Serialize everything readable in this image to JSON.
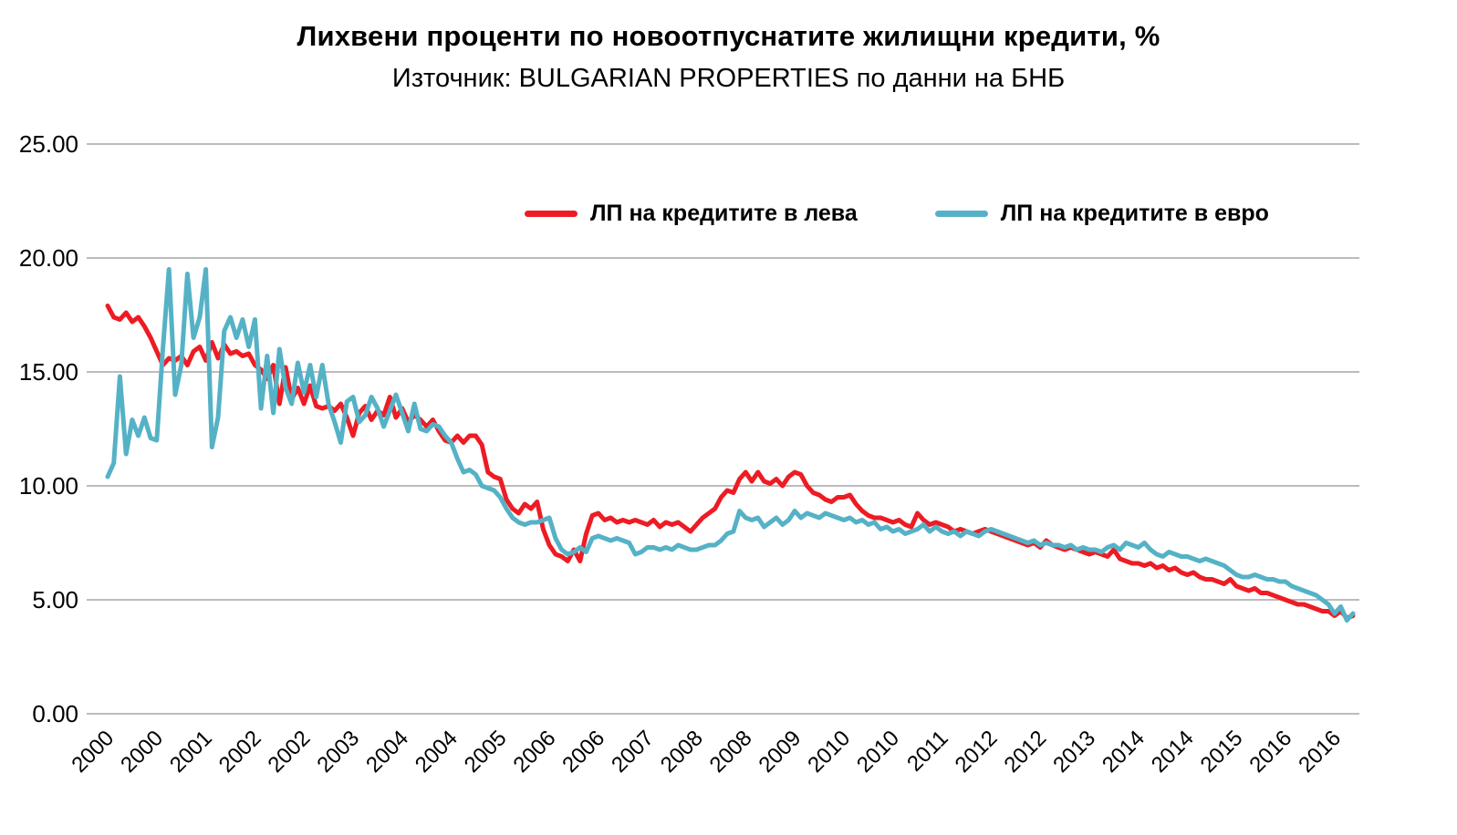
{
  "chart_data": {
    "type": "line",
    "title": "Лихвени проценти по новоотпуснатите жилищни кредити, %",
    "subtitle": "Източник: BULGARIAN PROPERTIES по данни на БНБ",
    "xlabel": "",
    "ylabel": "",
    "x_unit": "monthly, Jan 2000 – Dec 2016",
    "x_tick_every": 8,
    "x_tick_labels": [
      "2000",
      "2000",
      "2001",
      "2002",
      "2002",
      "2003",
      "2004",
      "2004",
      "2005",
      "2006",
      "2006",
      "2007",
      "2008",
      "2008",
      "2009",
      "2010",
      "2010",
      "2011",
      "2012",
      "2012",
      "2013",
      "2014",
      "2014",
      "2015",
      "2016",
      "2016"
    ],
    "ylim": [
      0,
      25
    ],
    "y_ticks": [
      "0.00",
      "5.00",
      "10.00",
      "15.00",
      "20.00",
      "25.00"
    ],
    "grid": "horizontal",
    "legend_position": "top-inside",
    "grid_color": "#a6a6a6",
    "series": [
      {
        "name": "ЛП на кредитите в лева",
        "color": "#ed1c24",
        "values": [
          17.9,
          17.4,
          17.3,
          17.6,
          17.2,
          17.4,
          17.0,
          16.5,
          15.9,
          15.3,
          15.6,
          15.5,
          15.7,
          15.3,
          15.9,
          16.1,
          15.5,
          16.3,
          15.6,
          16.2,
          15.8,
          15.9,
          15.7,
          15.8,
          15.3,
          15.1,
          14.7,
          15.3,
          13.6,
          15.2,
          13.8,
          14.3,
          13.6,
          14.4,
          13.5,
          13.4,
          13.5,
          13.3,
          13.6,
          13.0,
          12.2,
          13.2,
          13.5,
          12.9,
          13.3,
          13.1,
          13.9,
          13.0,
          13.4,
          12.8,
          13.1,
          12.9,
          12.6,
          12.9,
          12.4,
          12.0,
          11.9,
          12.2,
          11.9,
          12.2,
          12.2,
          11.8,
          10.6,
          10.4,
          10.3,
          9.4,
          9.0,
          8.8,
          9.2,
          9.0,
          9.3,
          8.1,
          7.4,
          7.0,
          6.9,
          6.7,
          7.2,
          6.7,
          7.9,
          8.7,
          8.8,
          8.5,
          8.6,
          8.4,
          8.5,
          8.4,
          8.5,
          8.4,
          8.3,
          8.5,
          8.2,
          8.4,
          8.3,
          8.4,
          8.2,
          8.0,
          8.3,
          8.6,
          8.8,
          9.0,
          9.5,
          9.8,
          9.7,
          10.3,
          10.6,
          10.2,
          10.6,
          10.2,
          10.1,
          10.3,
          10.0,
          10.4,
          10.6,
          10.5,
          10.0,
          9.7,
          9.6,
          9.4,
          9.3,
          9.5,
          9.5,
          9.6,
          9.2,
          8.9,
          8.7,
          8.6,
          8.6,
          8.5,
          8.4,
          8.5,
          8.3,
          8.2,
          8.8,
          8.5,
          8.3,
          8.4,
          8.3,
          8.2,
          8.0,
          8.1,
          8.0,
          7.9,
          8.0,
          8.1,
          8.0,
          7.9,
          7.8,
          7.7,
          7.6,
          7.5,
          7.4,
          7.5,
          7.3,
          7.6,
          7.4,
          7.3,
          7.2,
          7.3,
          7.2,
          7.1,
          7.0,
          7.1,
          7.0,
          6.9,
          7.2,
          6.8,
          6.7,
          6.6,
          6.6,
          6.5,
          6.6,
          6.4,
          6.5,
          6.3,
          6.4,
          6.2,
          6.1,
          6.2,
          6.0,
          5.9,
          5.9,
          5.8,
          5.7,
          5.9,
          5.6,
          5.5,
          5.4,
          5.5,
          5.3,
          5.3,
          5.2,
          5.1,
          5.0,
          4.9,
          4.8,
          4.8,
          4.7,
          4.6,
          4.5,
          4.5,
          4.3,
          4.5,
          4.2,
          4.3
        ]
      },
      {
        "name": "ЛП на кредитите в евро",
        "color": "#55b2c6",
        "values": [
          10.4,
          11.0,
          14.8,
          11.4,
          12.9,
          12.2,
          13.0,
          12.1,
          12.0,
          16.0,
          19.5,
          14.0,
          15.3,
          19.3,
          16.5,
          17.4,
          19.5,
          11.7,
          13.0,
          16.8,
          17.4,
          16.5,
          17.3,
          16.1,
          17.3,
          13.4,
          15.7,
          13.2,
          16.0,
          14.3,
          13.6,
          15.4,
          14.1,
          15.3,
          13.9,
          15.3,
          13.6,
          12.8,
          11.9,
          13.7,
          13.9,
          12.8,
          13.1,
          13.9,
          13.4,
          12.6,
          13.3,
          14.0,
          13.2,
          12.4,
          13.6,
          12.5,
          12.4,
          12.7,
          12.6,
          12.2,
          11.9,
          11.2,
          10.6,
          10.7,
          10.5,
          10.0,
          9.9,
          9.8,
          9.5,
          9.0,
          8.6,
          8.4,
          8.3,
          8.4,
          8.4,
          8.5,
          8.6,
          7.7,
          7.2,
          7.0,
          7.1,
          7.3,
          7.1,
          7.7,
          7.8,
          7.7,
          7.6,
          7.7,
          7.6,
          7.5,
          7.0,
          7.1,
          7.3,
          7.3,
          7.2,
          7.3,
          7.2,
          7.4,
          7.3,
          7.2,
          7.2,
          7.3,
          7.4,
          7.4,
          7.6,
          7.9,
          8.0,
          8.9,
          8.6,
          8.5,
          8.6,
          8.2,
          8.4,
          8.6,
          8.3,
          8.5,
          8.9,
          8.6,
          8.8,
          8.7,
          8.6,
          8.8,
          8.7,
          8.6,
          8.5,
          8.6,
          8.4,
          8.5,
          8.3,
          8.4,
          8.1,
          8.2,
          8.0,
          8.1,
          7.9,
          8.0,
          8.1,
          8.3,
          8.0,
          8.2,
          8.0,
          7.9,
          8.0,
          7.8,
          8.0,
          7.9,
          7.8,
          8.0,
          8.1,
          8.0,
          7.9,
          7.8,
          7.7,
          7.6,
          7.5,
          7.6,
          7.4,
          7.5,
          7.4,
          7.4,
          7.3,
          7.4,
          7.2,
          7.3,
          7.2,
          7.2,
          7.1,
          7.3,
          7.4,
          7.2,
          7.5,
          7.4,
          7.3,
          7.5,
          7.2,
          7.0,
          6.9,
          7.1,
          7.0,
          6.9,
          6.9,
          6.8,
          6.7,
          6.8,
          6.7,
          6.6,
          6.5,
          6.3,
          6.1,
          6.0,
          6.0,
          6.1,
          6.0,
          5.9,
          5.9,
          5.8,
          5.8,
          5.6,
          5.5,
          5.4,
          5.3,
          5.2,
          5.0,
          4.8,
          4.4,
          4.7,
          4.1,
          4.4
        ]
      }
    ]
  }
}
